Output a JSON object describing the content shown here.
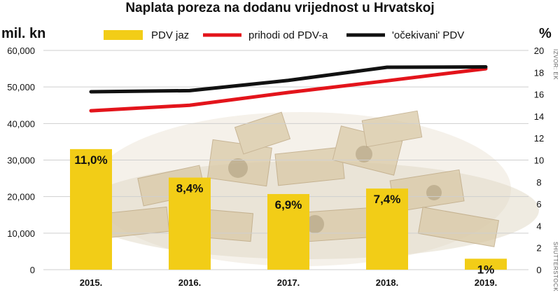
{
  "title": "Naplata poreza na dodanu vrijednost u Hrvatskoj",
  "left_unit": "mil. kn",
  "right_unit": "%",
  "source_credit": "IZVOR: EK",
  "photo_credit": "SHUTTERSTOCK",
  "colors": {
    "bar": "#f2cd17",
    "revenue_line": "#e3141b",
    "expected_line": "#111111",
    "grid": "#cfcfcf"
  },
  "chart_data": {
    "type": "bar+line",
    "categories": [
      "2015.",
      "2016.",
      "2017.",
      "2018.",
      "2019."
    ],
    "left_axis": {
      "ylim": [
        0,
        60000
      ],
      "ticks": [
        "0",
        "10,000",
        "20,000",
        "30,000",
        "40,000",
        "50,000",
        "60,000"
      ]
    },
    "right_axis": {
      "ylim": [
        0,
        20
      ],
      "ticks": [
        "0",
        "2",
        "4",
        "6",
        "8",
        "10",
        "12",
        "14",
        "16",
        "18",
        "20"
      ]
    },
    "grid": true,
    "legend_position": "top",
    "legend": [
      "PDV jaz",
      "prihodi od PDV-a",
      "'očekivani' PDV"
    ],
    "series": [
      {
        "name": "PDV jaz",
        "type": "bar",
        "axis": "right",
        "values": [
          11.0,
          8.4,
          6.9,
          7.4,
          1.0
        ],
        "labels": [
          "11,0%",
          "8,4%",
          "6,9%",
          "7,4%",
          "1%"
        ]
      },
      {
        "name": "prihodi od PDV-a",
        "type": "line",
        "axis": "left",
        "values": [
          43500,
          45000,
          48500,
          51700,
          55000
        ]
      },
      {
        "name": "'očekivani' PDV",
        "type": "line",
        "axis": "left",
        "values": [
          48700,
          49000,
          51800,
          55400,
          55500
        ]
      }
    ]
  }
}
